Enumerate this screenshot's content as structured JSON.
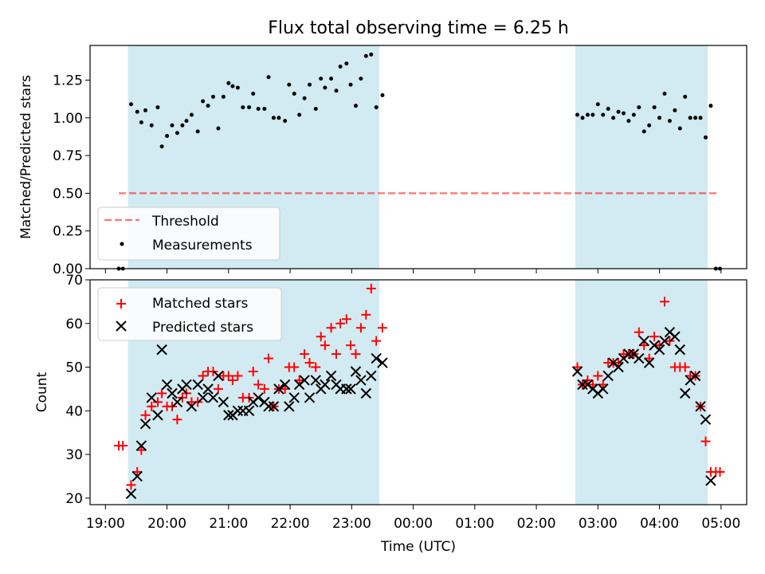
{
  "title": "Flux total observing time = 6.25 h",
  "colors": {
    "shade": "#add8e6",
    "threshold": "#ff0000",
    "measurement": "#000000",
    "matched": "#ff0000",
    "predicted": "#000000"
  },
  "chart_data": [
    {
      "type": "scatter",
      "ylabel": "Matched/Predicted stars",
      "ylim": [
        0,
        1.48
      ],
      "yticks": [
        0.0,
        0.25,
        0.5,
        0.75,
        1.0,
        1.25
      ],
      "ytick_labels": [
        "0.00",
        "0.25",
        "0.50",
        "0.75",
        "1.00",
        "1.25"
      ],
      "legend_position": "lower-left",
      "threshold": {
        "name": "Threshold",
        "value": 0.5,
        "x_start": "19:13",
        "x_end": "04:58"
      },
      "shaded_spans": [
        [
          "19:22",
          "23:27"
        ],
        [
          "02:38",
          "04:47"
        ]
      ],
      "series": [
        {
          "name": "Measurements",
          "points": [
            [
              "19:13",
              0.0
            ],
            [
              "19:17",
              0.0
            ],
            [
              "19:25",
              1.09
            ],
            [
              "19:31",
              1.04
            ],
            [
              "19:35",
              0.97
            ],
            [
              "19:39",
              1.05
            ],
            [
              "19:45",
              0.95
            ],
            [
              "19:51",
              1.07
            ],
            [
              "19:55",
              0.81
            ],
            [
              "20:00",
              0.88
            ],
            [
              "20:05",
              0.95
            ],
            [
              "20:10",
              0.9
            ],
            [
              "20:15",
              0.95
            ],
            [
              "20:19",
              0.98
            ],
            [
              "20:24",
              1.02
            ],
            [
              "20:30",
              0.91
            ],
            [
              "20:35",
              1.11
            ],
            [
              "20:40",
              1.08
            ],
            [
              "20:45",
              1.14
            ],
            [
              "20:50",
              0.93
            ],
            [
              "20:55",
              1.14
            ],
            [
              "21:00",
              1.23
            ],
            [
              "21:04",
              1.21
            ],
            [
              "21:09",
              1.2
            ],
            [
              "21:14",
              1.07
            ],
            [
              "21:20",
              1.07
            ],
            [
              "21:24",
              1.16
            ],
            [
              "21:29",
              1.06
            ],
            [
              "21:35",
              1.06
            ],
            [
              "21:39",
              1.27
            ],
            [
              "21:44",
              1.0
            ],
            [
              "21:49",
              1.0
            ],
            [
              "21:55",
              0.98
            ],
            [
              "21:59",
              1.22
            ],
            [
              "22:04",
              1.16
            ],
            [
              "22:09",
              1.02
            ],
            [
              "22:14",
              1.13
            ],
            [
              "22:19",
              1.22
            ],
            [
              "22:25",
              1.06
            ],
            [
              "22:30",
              1.26
            ],
            [
              "22:34",
              1.2
            ],
            [
              "22:40",
              1.26
            ],
            [
              "22:45",
              1.18
            ],
            [
              "22:49",
              1.34
            ],
            [
              "22:55",
              1.36
            ],
            [
              "22:59",
              1.22
            ],
            [
              "23:04",
              1.08
            ],
            [
              "23:09",
              1.26
            ],
            [
              "23:14",
              1.41
            ],
            [
              "23:19",
              1.42
            ],
            [
              "23:24",
              1.07
            ],
            [
              "23:30",
              1.15
            ],
            [
              "02:40",
              1.02
            ],
            [
              "02:45",
              1.0
            ],
            [
              "02:50",
              1.02
            ],
            [
              "02:55",
              1.02
            ],
            [
              "03:00",
              1.09
            ],
            [
              "03:05",
              1.02
            ],
            [
              "03:10",
              1.06
            ],
            [
              "03:15",
              1.0
            ],
            [
              "03:20",
              1.04
            ],
            [
              "03:25",
              1.03
            ],
            [
              "03:30",
              0.98
            ],
            [
              "03:35",
              1.02
            ],
            [
              "03:40",
              1.07
            ],
            [
              "03:45",
              0.91
            ],
            [
              "03:50",
              0.95
            ],
            [
              "03:55",
              1.07
            ],
            [
              "04:00",
              1.0
            ],
            [
              "04:05",
              1.16
            ],
            [
              "04:10",
              0.98
            ],
            [
              "04:15",
              1.05
            ],
            [
              "04:20",
              0.93
            ],
            [
              "04:25",
              1.14
            ],
            [
              "04:30",
              1.0
            ],
            [
              "04:35",
              1.0
            ],
            [
              "04:40",
              1.0
            ],
            [
              "04:45",
              0.87
            ],
            [
              "04:50",
              1.08
            ],
            [
              "04:55",
              0.0
            ],
            [
              "04:59",
              0.0
            ]
          ]
        }
      ]
    },
    {
      "type": "scatter",
      "xlabel": "Time (UTC)",
      "ylabel": "Count",
      "ylim": [
        18.5,
        70
      ],
      "yticks": [
        20,
        30,
        40,
        50,
        60,
        70
      ],
      "ytick_labels": [
        "20",
        "30",
        "40",
        "50",
        "60",
        "70"
      ],
      "xlim": [
        "18:45",
        "05:25"
      ],
      "xticks": [
        "19:00",
        "20:00",
        "21:00",
        "22:00",
        "23:00",
        "00:00",
        "01:00",
        "02:00",
        "03:00",
        "04:00",
        "05:00"
      ],
      "xtick_labels": [
        "19:00",
        "20:00",
        "21:00",
        "22:00",
        "23:00",
        "00:00",
        "01:00",
        "02:00",
        "03:00",
        "04:00",
        "05:00"
      ],
      "legend_position": "upper-left",
      "shaded_spans": [
        [
          "19:22",
          "23:27"
        ],
        [
          "02:38",
          "04:47"
        ]
      ],
      "series": [
        {
          "name": "Matched stars",
          "marker": "+",
          "points": [
            [
              "19:13",
              32
            ],
            [
              "19:17",
              32
            ],
            [
              "19:25",
              23
            ],
            [
              "19:31",
              26
            ],
            [
              "19:35",
              31
            ],
            [
              "19:39",
              39
            ],
            [
              "19:45",
              41
            ],
            [
              "19:51",
              42
            ],
            [
              "19:55",
              44
            ],
            [
              "20:00",
              41
            ],
            [
              "20:05",
              41
            ],
            [
              "20:10",
              38
            ],
            [
              "20:15",
              43
            ],
            [
              "20:19",
              44
            ],
            [
              "20:24",
              42
            ],
            [
              "20:30",
              42
            ],
            [
              "20:35",
              48
            ],
            [
              "20:40",
              49
            ],
            [
              "20:45",
              49
            ],
            [
              "20:50",
              45
            ],
            [
              "20:55",
              48
            ],
            [
              "21:00",
              48
            ],
            [
              "21:04",
              47
            ],
            [
              "21:09",
              48
            ],
            [
              "21:14",
              43
            ],
            [
              "21:20",
              43
            ],
            [
              "21:24",
              49
            ],
            [
              "21:29",
              46
            ],
            [
              "21:35",
              45
            ],
            [
              "21:39",
              52
            ],
            [
              "21:44",
              41
            ],
            [
              "21:49",
              45
            ],
            [
              "21:55",
              45
            ],
            [
              "21:59",
              50
            ],
            [
              "22:04",
              50
            ],
            [
              "22:09",
              47
            ],
            [
              "22:14",
              53
            ],
            [
              "22:19",
              51
            ],
            [
              "22:25",
              50
            ],
            [
              "22:30",
              57
            ],
            [
              "22:34",
              55
            ],
            [
              "22:40",
              59
            ],
            [
              "22:45",
              53
            ],
            [
              "22:49",
              60
            ],
            [
              "22:55",
              61
            ],
            [
              "22:59",
              55
            ],
            [
              "23:04",
              53
            ],
            [
              "23:09",
              59
            ],
            [
              "23:14",
              62
            ],
            [
              "23:19",
              68
            ],
            [
              "23:24",
              56
            ],
            [
              "23:30",
              59
            ],
            [
              "02:40",
              50
            ],
            [
              "02:45",
              46
            ],
            [
              "02:50",
              47
            ],
            [
              "02:55",
              46
            ],
            [
              "03:00",
              48
            ],
            [
              "03:05",
              46
            ],
            [
              "03:10",
              51
            ],
            [
              "03:15",
              51
            ],
            [
              "03:20",
              51
            ],
            [
              "03:25",
              53
            ],
            [
              "03:30",
              53
            ],
            [
              "03:35",
              53
            ],
            [
              "03:40",
              58
            ],
            [
              "03:45",
              55
            ],
            [
              "03:50",
              52
            ],
            [
              "03:55",
              57
            ],
            [
              "04:00",
              55
            ],
            [
              "04:05",
              65
            ],
            [
              "04:10",
              56
            ],
            [
              "04:15",
              50
            ],
            [
              "04:20",
              50
            ],
            [
              "04:25",
              50
            ],
            [
              "04:30",
              48
            ],
            [
              "04:35",
              48
            ],
            [
              "04:40",
              41
            ],
            [
              "04:45",
              33
            ],
            [
              "04:50",
              26
            ],
            [
              "04:55",
              26
            ],
            [
              "04:59",
              26
            ]
          ]
        },
        {
          "name": "Predicted stars",
          "marker": "x",
          "points": [
            [
              "19:25",
              21
            ],
            [
              "19:31",
              25
            ],
            [
              "19:35",
              32
            ],
            [
              "19:39",
              37
            ],
            [
              "19:45",
              43
            ],
            [
              "19:51",
              39
            ],
            [
              "19:55",
              54
            ],
            [
              "20:00",
              46
            ],
            [
              "20:05",
              44
            ],
            [
              "20:10",
              42
            ],
            [
              "20:15",
              45
            ],
            [
              "20:19",
              46
            ],
            [
              "20:24",
              41
            ],
            [
              "20:30",
              46
            ],
            [
              "20:35",
              43
            ],
            [
              "20:40",
              45
            ],
            [
              "20:45",
              43
            ],
            [
              "20:50",
              48
            ],
            [
              "20:55",
              42
            ],
            [
              "21:00",
              39
            ],
            [
              "21:04",
              39
            ],
            [
              "21:09",
              40
            ],
            [
              "21:14",
              40
            ],
            [
              "21:20",
              40
            ],
            [
              "21:24",
              42
            ],
            [
              "21:29",
              43
            ],
            [
              "21:35",
              42
            ],
            [
              "21:39",
              41
            ],
            [
              "21:44",
              41
            ],
            [
              "21:49",
              45
            ],
            [
              "21:55",
              46
            ],
            [
              "21:59",
              41
            ],
            [
              "22:04",
              43
            ],
            [
              "22:09",
              46
            ],
            [
              "22:14",
              47
            ],
            [
              "22:19",
              43
            ],
            [
              "22:25",
              47
            ],
            [
              "22:30",
              45
            ],
            [
              "22:34",
              46
            ],
            [
              "22:40",
              48
            ],
            [
              "22:45",
              46
            ],
            [
              "22:49",
              45
            ],
            [
              "22:55",
              45
            ],
            [
              "22:59",
              45
            ],
            [
              "23:04",
              49
            ],
            [
              "23:09",
              47
            ],
            [
              "23:14",
              44
            ],
            [
              "23:19",
              48
            ],
            [
              "23:24",
              52
            ],
            [
              "23:30",
              51
            ],
            [
              "02:40",
              49
            ],
            [
              "02:45",
              46
            ],
            [
              "02:50",
              46
            ],
            [
              "02:55",
              45
            ],
            [
              "03:00",
              44
            ],
            [
              "03:05",
              45
            ],
            [
              "03:10",
              48
            ],
            [
              "03:15",
              51
            ],
            [
              "03:20",
              50
            ],
            [
              "03:25",
              52
            ],
            [
              "03:30",
              53
            ],
            [
              "03:35",
              53
            ],
            [
              "03:40",
              52
            ],
            [
              "03:45",
              56
            ],
            [
              "03:50",
              51
            ],
            [
              "03:55",
              55
            ],
            [
              "04:00",
              54
            ],
            [
              "04:05",
              56
            ],
            [
              "04:10",
              58
            ],
            [
              "04:15",
              57
            ],
            [
              "04:20",
              54
            ],
            [
              "04:25",
              44
            ],
            [
              "04:30",
              47
            ],
            [
              "04:35",
              48
            ],
            [
              "04:40",
              41
            ],
            [
              "04:45",
              38
            ],
            [
              "04:50",
              24
            ]
          ]
        }
      ]
    }
  ]
}
